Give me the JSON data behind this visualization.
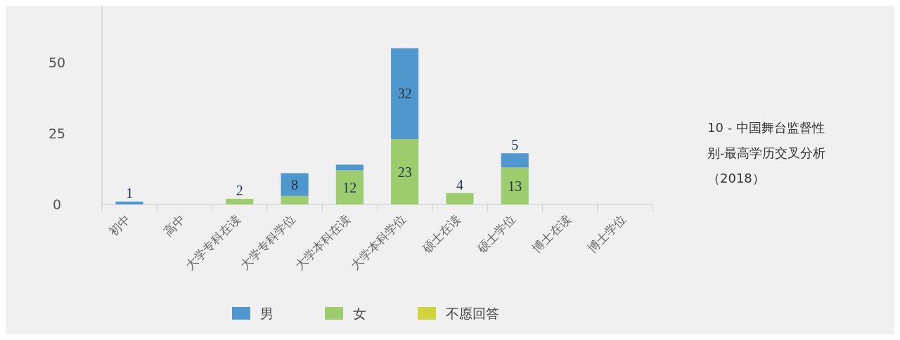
{
  "chart_data": {
    "type": "bar",
    "stacked": true,
    "title": "10 - 中国舞台监督性别-最高学历交叉分析（2018）",
    "categories": [
      "初中",
      "高中",
      "大学专科在读",
      "大学专科学位",
      "大学本科在读",
      "大学本科学位",
      "硕士在读",
      "硕士学位",
      "博士在读",
      "博士学位"
    ],
    "series": [
      {
        "name": "女",
        "color": "#9ccc6e",
        "values": [
          0,
          0,
          2,
          3,
          12,
          23,
          4,
          13,
          0,
          0
        ],
        "value_labels": [
          null,
          null,
          "2",
          null,
          "12",
          "23",
          "4",
          "13",
          null,
          null
        ]
      },
      {
        "name": "男",
        "color": "#4f97cc",
        "values": [
          1,
          0,
          0,
          8,
          2,
          32,
          0,
          5,
          0,
          0
        ],
        "value_labels": [
          "1",
          null,
          null,
          "8",
          null,
          "32",
          null,
          "5",
          null,
          null
        ]
      },
      {
        "name": "不愿回答",
        "color": "#cfd43c",
        "values": [
          0,
          0,
          0,
          0,
          0,
          0,
          0,
          0,
          0,
          0
        ]
      }
    ],
    "ylim": [
      0,
      70
    ],
    "yticks": [
      0,
      25,
      50
    ],
    "grid": false,
    "legend": "bottom"
  }
}
